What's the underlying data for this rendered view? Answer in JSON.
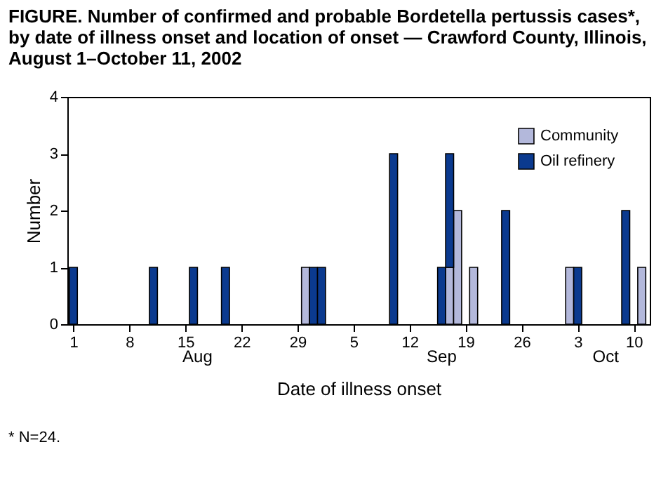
{
  "chart_data": {
    "type": "bar",
    "title": "FIGURE. Number of confirmed and probable Bordetella pertussis cases*, by date of illness onset and location of onset — Crawford County, Illinois, August 1–October 11, 2002",
    "xlabel": "Date of illness onset",
    "ylabel": "Number",
    "x": [
      "2002-08-01",
      "2002-08-11",
      "2002-08-16",
      "2002-08-20",
      "2002-08-30",
      "2002-08-31",
      "2002-09-01",
      "2002-09-10",
      "2002-09-16",
      "2002-09-17",
      "2002-09-18",
      "2002-09-20",
      "2002-09-24",
      "2002-10-02",
      "2002-10-03",
      "2002-10-09",
      "2002-10-11"
    ],
    "series": [
      {
        "name": "Community",
        "color": "#b3b8db",
        "values": [
          null,
          null,
          null,
          null,
          1,
          null,
          null,
          null,
          null,
          1,
          2,
          1,
          null,
          1,
          null,
          null,
          1
        ]
      },
      {
        "name": "Oil refinery",
        "color": "#0b3a8f",
        "values": [
          1,
          1,
          1,
          1,
          null,
          1,
          1,
          3,
          1,
          2,
          null,
          null,
          2,
          null,
          1,
          2,
          null
        ]
      }
    ],
    "stacked": true,
    "xlim": [
      "2002-07-31T06:00",
      "2002-10-12"
    ],
    "xticks": [
      {
        "value": "2002-08-01",
        "label": "1"
      },
      {
        "value": "2002-08-08",
        "label": "8"
      },
      {
        "value": "2002-08-15",
        "label": "15"
      },
      {
        "value": "2002-08-22",
        "label": "22"
      },
      {
        "value": "2002-08-29",
        "label": "29"
      },
      {
        "value": "2002-09-05",
        "label": "5"
      },
      {
        "value": "2002-09-12",
        "label": "12"
      },
      {
        "value": "2002-09-19",
        "label": "19"
      },
      {
        "value": "2002-09-26",
        "label": "26"
      },
      {
        "value": "2002-10-03",
        "label": "3"
      },
      {
        "value": "2002-10-10",
        "label": "10"
      }
    ],
    "ylim": [
      0,
      4
    ],
    "yticks": [
      0,
      1,
      2,
      3,
      4
    ],
    "grid": false,
    "legend": "top right",
    "annotations": [
      "Aug",
      "Sep",
      "Oct",
      "* N=24."
    ]
  }
}
